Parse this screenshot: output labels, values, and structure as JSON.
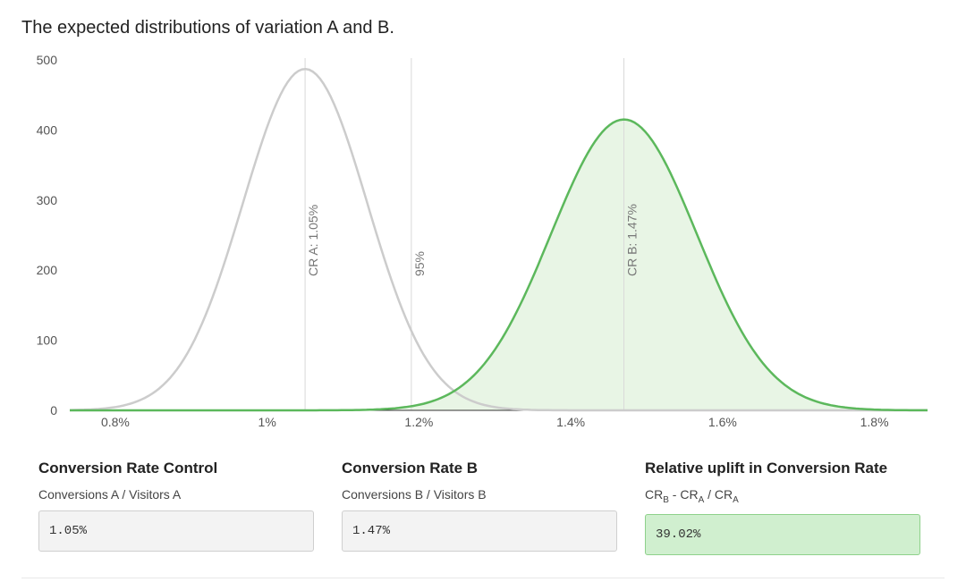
{
  "title": "The expected distributions of variation A and B.",
  "chart_data": {
    "type": "area",
    "title": "The expected distributions of variation A and B.",
    "xlabel": "",
    "ylabel": "",
    "xlim": [
      0.74,
      1.87
    ],
    "ylim": [
      0,
      500
    ],
    "x_ticks": [
      0.8,
      1.0,
      1.2,
      1.4,
      1.6,
      1.8
    ],
    "x_tick_labels": [
      "0.8%",
      "1%",
      "1.2%",
      "1.4%",
      "1.6%",
      "1.8%"
    ],
    "y_ticks": [
      0,
      100,
      200,
      300,
      400,
      500
    ],
    "y_tick_labels": [
      "0",
      "100",
      "200",
      "300",
      "400",
      "500"
    ],
    "grid": false,
    "series": [
      {
        "mean": 1.05,
        "peak": 487,
        "sd": 0.082,
        "color": "#cccccc",
        "fill": "none"
      },
      {
        "mean": 1.47,
        "peak": 415,
        "sd": 0.096,
        "color": "#5cb85c",
        "fill": "#e8f5e5"
      }
    ],
    "annotations": [
      {
        "x": 1.05,
        "label": "CR A: 1.05%"
      },
      {
        "x": 1.19,
        "label": "95%"
      },
      {
        "x": 1.47,
        "label": "CR B: 1.47%"
      }
    ]
  },
  "panels": {
    "control": {
      "heading": "Conversion Rate Control",
      "sub": "Conversions A / Visitors A",
      "value": "1.05%"
    },
    "b": {
      "heading": "Conversion Rate B",
      "sub": "Conversions B / Visitors B",
      "value": "1.47%"
    },
    "uplift": {
      "heading": "Relative uplift in Conversion Rate",
      "sub_cr": "CR",
      "sub_b": "B",
      "sub_mid": " - CR",
      "sub_a1": "A",
      "sub_slash": " / CR",
      "sub_a2": "A",
      "value": "39.02%"
    }
  }
}
